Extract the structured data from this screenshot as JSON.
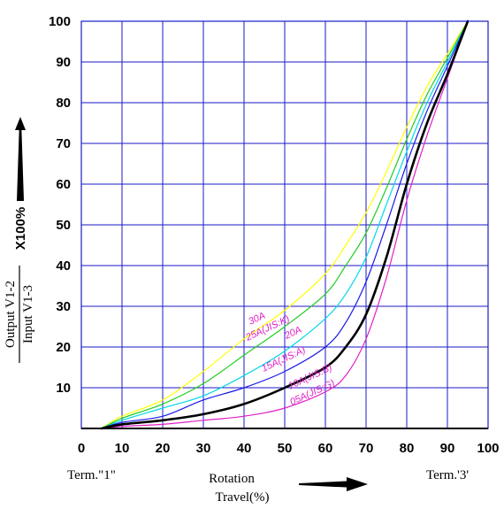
{
  "chart_data": {
    "type": "line",
    "title": "",
    "xlabel_line1": "Rotation",
    "xlabel_line2": "Travel(%)",
    "ylabel_numerator": "Output V1-2",
    "ylabel_denominator": "Input V1-3",
    "ylabel_multiplier": "X100%",
    "term_left": "Term.\"1\"",
    "term_right": "Term.'3'",
    "xlim": [
      0,
      100
    ],
    "ylim": [
      0,
      100
    ],
    "x_ticks": [
      {
        "v": 0,
        "label": "0"
      },
      {
        "v": 10,
        "label": "10"
      },
      {
        "v": 20,
        "label": "20"
      },
      {
        "v": 30,
        "label": "30"
      },
      {
        "v": 40,
        "label": "40"
      },
      {
        "v": 50,
        "label": "50"
      },
      {
        "v": 60,
        "label": "60"
      },
      {
        "v": 70,
        "label": "70"
      },
      {
        "v": 80,
        "label": "80"
      },
      {
        "v": 90,
        "label": "90"
      },
      {
        "v": 100,
        "label": "100"
      }
    ],
    "y_ticks": [
      {
        "v": 10,
        "label": "10"
      },
      {
        "v": 20,
        "label": "20"
      },
      {
        "v": 30,
        "label": "30"
      },
      {
        "v": 40,
        "label": "40"
      },
      {
        "v": 50,
        "label": "50"
      },
      {
        "v": 60,
        "label": "60"
      },
      {
        "v": 70,
        "label": "70"
      },
      {
        "v": 80,
        "label": "80"
      },
      {
        "v": 90,
        "label": "90"
      },
      {
        "v": 100,
        "label": "100"
      }
    ],
    "grid": true,
    "grid_color": "#1a1ac8",
    "series": [
      {
        "name": "30A",
        "color": "#ffff00",
        "width": 1.2,
        "x": [
          5,
          10,
          20,
          30,
          40,
          50,
          60,
          65,
          70,
          75,
          80,
          85,
          90,
          95
        ],
        "y": [
          0,
          3,
          7,
          14,
          22,
          29,
          38,
          45,
          53,
          63,
          74,
          84,
          92,
          100
        ]
      },
      {
        "name": "25A(JIS:K)",
        "color": "#22cc22",
        "width": 1.2,
        "x": [
          5,
          10,
          20,
          30,
          40,
          50,
          60,
          65,
          70,
          75,
          80,
          85,
          90,
          95
        ],
        "y": [
          0,
          2.5,
          6,
          11,
          18,
          25,
          33,
          40,
          48,
          59,
          71,
          82,
          91,
          100
        ]
      },
      {
        "name": "20A",
        "color": "#00d8e8",
        "width": 1.2,
        "x": [
          5,
          10,
          20,
          30,
          40,
          50,
          60,
          65,
          70,
          75,
          80,
          85,
          90,
          95
        ],
        "y": [
          0,
          2,
          5,
          8,
          13,
          19,
          27,
          33,
          42,
          55,
          68,
          80,
          90,
          100
        ]
      },
      {
        "name": "15A(JIS:A)",
        "color": "#1a1ae8",
        "width": 1.2,
        "x": [
          5,
          10,
          20,
          30,
          40,
          50,
          60,
          65,
          70,
          75,
          80,
          85,
          90,
          95
        ],
        "y": [
          0,
          1.5,
          3,
          7,
          10,
          14,
          20,
          26,
          36,
          50,
          65,
          78,
          89,
          100
        ]
      },
      {
        "name": "10A(JIS:B)",
        "color": "#000000",
        "width": 2.6,
        "x": [
          5,
          10,
          20,
          30,
          40,
          50,
          60,
          65,
          70,
          75,
          80,
          85,
          90,
          95
        ],
        "y": [
          0,
          1,
          2,
          3.5,
          6,
          10,
          15,
          20,
          28,
          42,
          60,
          75,
          87,
          100
        ]
      },
      {
        "name": "05A(JIS:G)",
        "color": "#e020c8",
        "width": 1.2,
        "x": [
          5,
          10,
          20,
          30,
          40,
          50,
          60,
          65,
          70,
          75,
          80,
          85,
          90,
          95
        ],
        "y": [
          0,
          0.5,
          1,
          2,
          3,
          5,
          9,
          13,
          22,
          37,
          56,
          72,
          86,
          100
        ]
      }
    ]
  }
}
